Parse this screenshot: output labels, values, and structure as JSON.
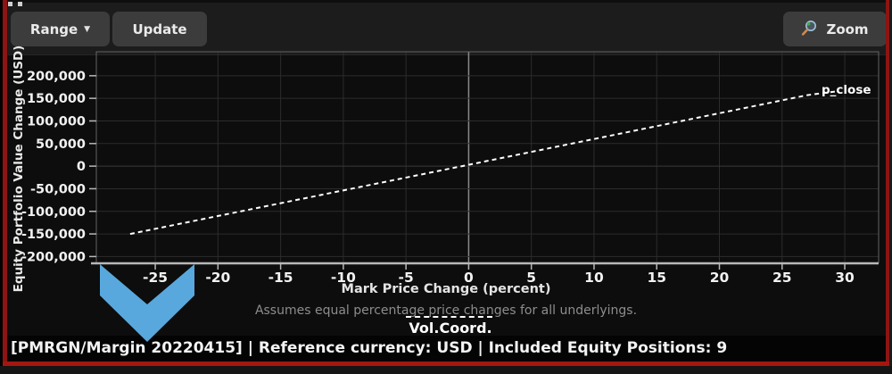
{
  "toolbar": {
    "range_label": "Range",
    "range_caret": "▼",
    "update_label": "Update",
    "zoom_label": "Zoom",
    "zoom_icon": "magnifier-icon"
  },
  "status_bar": {
    "text": "[PMRGN/Margin 20220415] | Reference currency: USD | Included Equity Positions: 9"
  },
  "chart_data": {
    "type": "line",
    "title": "",
    "subtitle": "Assumes equal percentage price changes for all underlyings.",
    "x_axis": {
      "label": "Mark Price Change (percent)",
      "ticks": [
        -25,
        -20,
        -15,
        -10,
        -5,
        0,
        5,
        10,
        15,
        20,
        25,
        30
      ],
      "range": [
        -29.7,
        32.7
      ]
    },
    "y_axis": {
      "label": "Equity Portfolio Value Change (USD)",
      "ticks": [
        200000,
        150000,
        100000,
        50000,
        0,
        -50000,
        -100000,
        -150000,
        -200000
      ],
      "range": [
        -215000,
        253000
      ]
    },
    "series": [
      {
        "name": "p_close",
        "style": "dashed",
        "color": "#ffffff",
        "points": [
          [
            -27,
            -150000
          ],
          [
            0,
            3000
          ],
          [
            27,
            157000
          ],
          [
            29.5,
            166000
          ]
        ]
      }
    ],
    "legend": {
      "label": "Vol.Coord.",
      "line_style": "dashed",
      "position": "bottom-center"
    },
    "grid": true,
    "annotations": [
      {
        "type": "arrow-down-chevron",
        "color": "#58a8dd",
        "target_x": -25
      }
    ]
  },
  "colors": {
    "grid": "#2c2c2c",
    "zero_x_line": "#8a8a8a",
    "zero_y_line": "#3b3937",
    "plot_border": "#636363",
    "axis_line": "#b8b8b8",
    "tick_text": "#f2f2f2",
    "frame_red": "#8c1412",
    "arrow_blue": "#58a8dd",
    "line_white": "#ffffff"
  }
}
